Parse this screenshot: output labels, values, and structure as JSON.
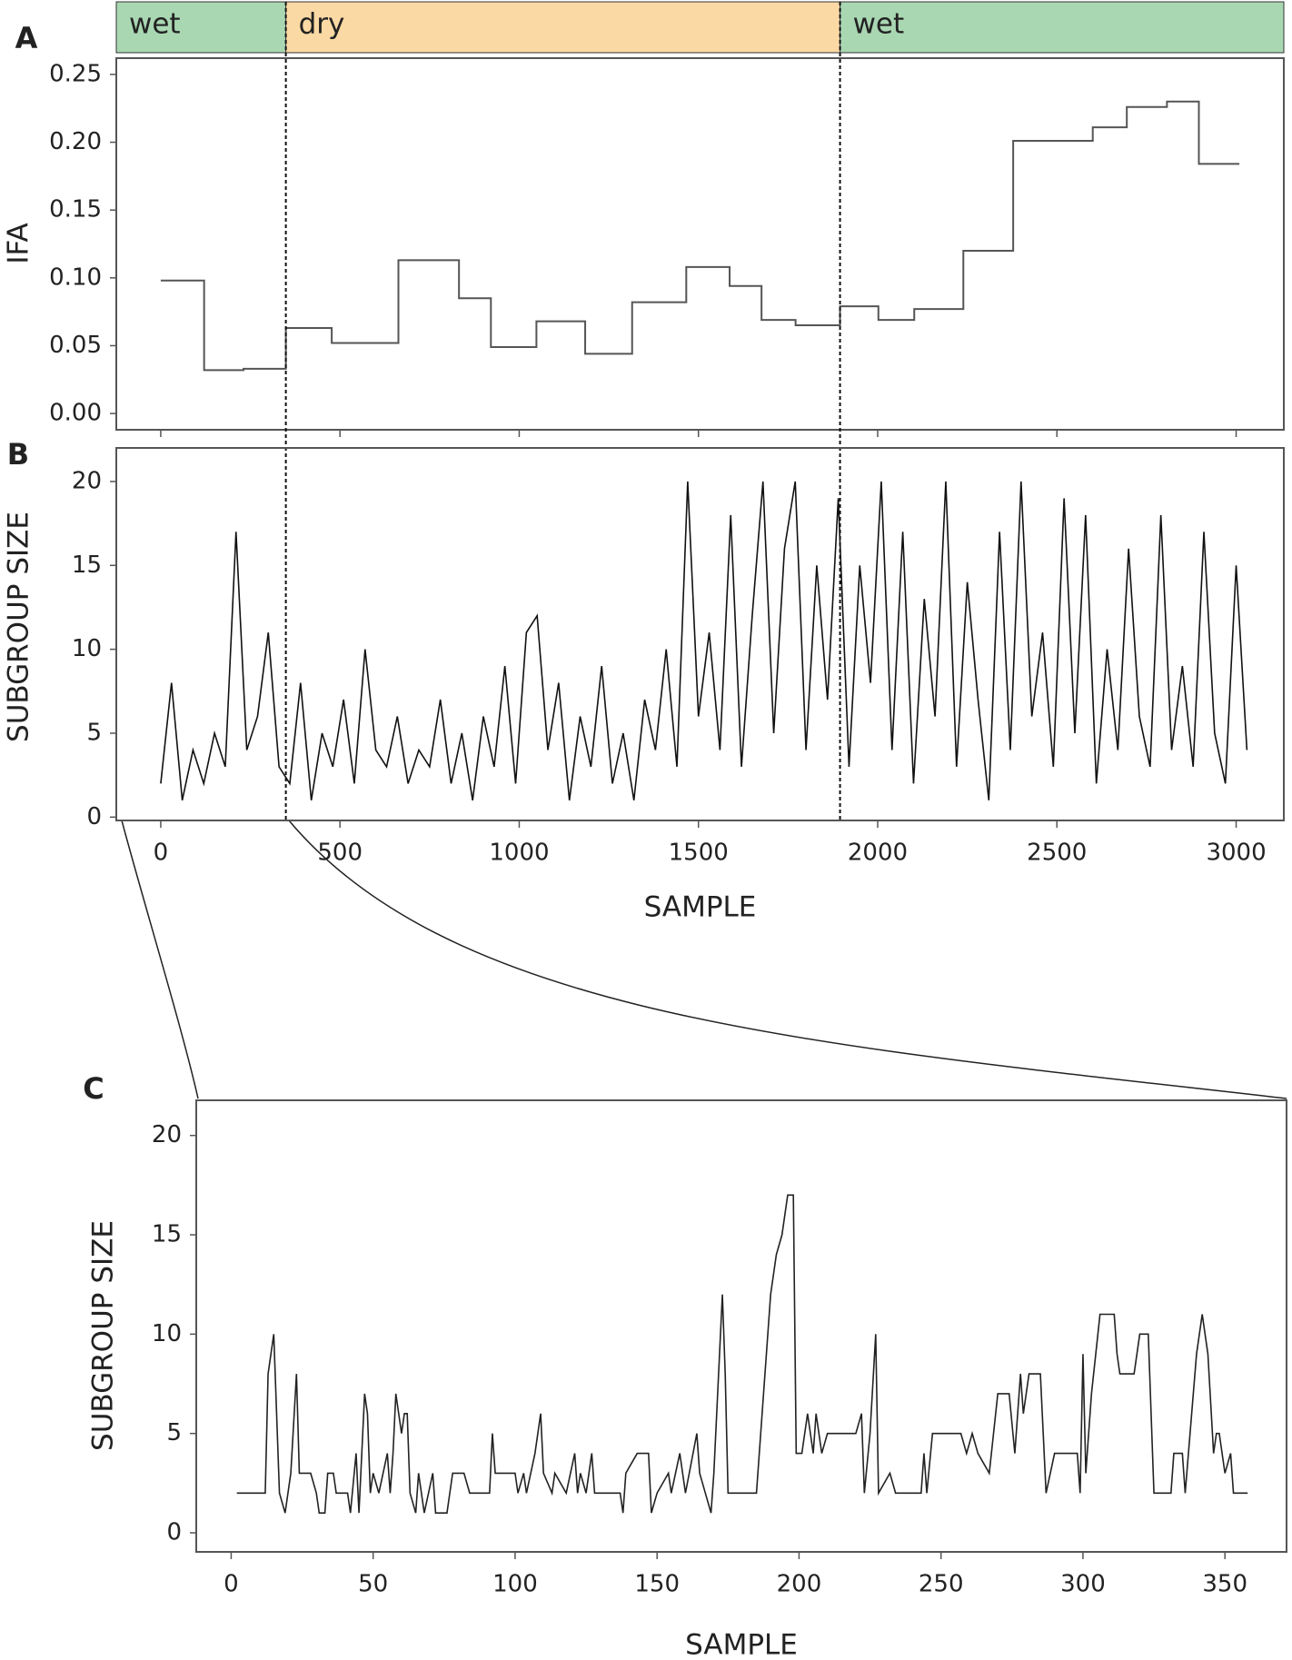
{
  "chart_data": [
    {
      "type": "step",
      "panel": "A",
      "y_label": "IFA",
      "bands": [
        {
          "label": "wet",
          "from": -124,
          "to": 349,
          "color": "#a9d7b2"
        },
        {
          "label": "dry",
          "from": 349,
          "to": 1895,
          "color": "#fbd9a4"
        },
        {
          "label": "wet",
          "from": 1895,
          "to": 3133,
          "color": "#a9d7b2"
        }
      ],
      "dividers": [
        349,
        1895
      ],
      "x": [
        0,
        121,
        231,
        349,
        477,
        663,
        832,
        921,
        1048,
        1184,
        1315,
        1466,
        1587,
        1676,
        1771,
        1895,
        2002,
        2102,
        2239,
        2378,
        2600,
        2695,
        2807,
        2896,
        3009
      ],
      "values": [
        0.098,
        0.032,
        0.033,
        0.063,
        0.052,
        0.113,
        0.085,
        0.049,
        0.068,
        0.044,
        0.082,
        0.108,
        0.094,
        0.069,
        0.065,
        0.079,
        0.069,
        0.077,
        0.12,
        0.201,
        0.211,
        0.226,
        0.23,
        0.184,
        0.184
      ],
      "color": "#555555",
      "xlim": [
        -124,
        3133
      ],
      "ylim": [
        -0.012,
        0.262
      ],
      "yticks": [
        {
          "value": 0.0,
          "label": "0.00"
        },
        0.05,
        {
          "value": 0.1,
          "label": "0.10"
        },
        0.15,
        {
          "value": 0.2,
          "label": "0.20"
        },
        0.25
      ]
    },
    {
      "type": "line",
      "panel": "B",
      "y_label": "SUBGROUP SIZE",
      "x_label": "SAMPLE",
      "x": [
        0,
        30,
        60,
        90,
        120,
        150,
        180,
        210,
        240,
        270,
        300,
        330,
        360,
        390,
        420,
        450,
        480,
        510,
        540,
        570,
        600,
        630,
        660,
        690,
        720,
        750,
        780,
        810,
        840,
        870,
        900,
        930,
        960,
        990,
        1020,
        1050,
        1080,
        1110,
        1140,
        1170,
        1200,
        1230,
        1260,
        1290,
        1320,
        1350,
        1380,
        1410,
        1440,
        1470,
        1500,
        1530,
        1560,
        1590,
        1620,
        1650,
        1680,
        1710,
        1740,
        1770,
        1800,
        1830,
        1860,
        1890,
        1920,
        1950,
        1980,
        2010,
        2040,
        2070,
        2100,
        2130,
        2160,
        2190,
        2220,
        2250,
        2280,
        2310,
        2340,
        2370,
        2400,
        2430,
        2460,
        2490,
        2520,
        2550,
        2580,
        2610,
        2640,
        2670,
        2700,
        2730,
        2760,
        2790,
        2820,
        2850,
        2880,
        2910,
        2940,
        2970,
        3000,
        3030
      ],
      "values": [
        2,
        8,
        1,
        4,
        2,
        5,
        3,
        17,
        4,
        6,
        11,
        3,
        2,
        8,
        1,
        5,
        3,
        7,
        2,
        10,
        4,
        3,
        6,
        2,
        4,
        3,
        7,
        2,
        5,
        1,
        6,
        3,
        9,
        2,
        11,
        12,
        4,
        8,
        1,
        6,
        3,
        9,
        2,
        5,
        1,
        7,
        4,
        10,
        3,
        20,
        6,
        11,
        4,
        18,
        3,
        12,
        20,
        5,
        16,
        20,
        4,
        15,
        7,
        19,
        3,
        15,
        8,
        20,
        4,
        17,
        2,
        13,
        6,
        20,
        3,
        14,
        7,
        1,
        17,
        4,
        20,
        6,
        11,
        3,
        19,
        5,
        18,
        2,
        10,
        4,
        16,
        6,
        3,
        18,
        4,
        9,
        3,
        17,
        5,
        2,
        15,
        4
      ],
      "color": "#111111",
      "xlim": [
        -124,
        3133
      ],
      "ylim": [
        -0.2,
        22
      ],
      "xticks": [
        0,
        500,
        1000,
        1500,
        2000,
        2500,
        3000
      ],
      "yticks": [
        0,
        5,
        10,
        15,
        20
      ]
    },
    {
      "type": "line",
      "panel": "C",
      "y_label": "SUBGROUP SIZE",
      "x_label": "SAMPLE",
      "x": [
        2,
        12,
        13,
        15,
        17,
        19,
        21,
        23,
        24,
        28,
        30,
        31,
        33,
        34,
        36,
        37,
        41,
        42,
        44,
        45,
        47,
        48,
        49,
        50,
        52,
        55,
        56,
        57,
        58,
        60,
        61,
        62,
        63,
        65,
        66,
        68,
        71,
        72,
        76,
        78,
        82,
        84,
        91,
        92,
        93,
        100,
        101,
        103,
        104,
        107,
        109,
        110,
        113,
        114,
        118,
        121,
        122,
        123,
        125,
        127,
        128,
        137,
        138,
        139,
        143,
        147,
        148,
        150,
        154,
        155,
        158,
        159,
        160,
        164,
        165,
        169,
        170,
        173,
        174,
        175,
        185,
        190,
        192,
        194,
        196,
        198,
        199,
        201,
        203,
        205,
        206,
        208,
        210,
        220,
        222,
        223,
        225,
        227,
        228,
        232,
        234,
        243,
        244,
        245,
        247,
        257,
        259,
        261,
        263,
        267,
        270,
        274,
        276,
        278,
        279,
        281,
        285,
        287,
        290,
        298,
        299,
        300,
        301,
        303,
        306,
        311,
        312,
        313,
        318,
        320,
        323,
        325,
        331,
        332,
        335,
        336,
        340,
        342,
        344,
        346,
        347,
        348,
        350,
        352,
        353,
        358
      ],
      "values": [
        2,
        2,
        8,
        10,
        2,
        1,
        3,
        8,
        3,
        3,
        2,
        1,
        1,
        3,
        3,
        2,
        2,
        1,
        4,
        1,
        7,
        6,
        2,
        3,
        2,
        4,
        2,
        4,
        7,
        5,
        6,
        6,
        2,
        1,
        3,
        1,
        3,
        1,
        1,
        3,
        3,
        2,
        2,
        5,
        3,
        3,
        2,
        3,
        2,
        4,
        6,
        3,
        2,
        3,
        2,
        4,
        2,
        3,
        2,
        4,
        2,
        2,
        1,
        3,
        4,
        4,
        1,
        2,
        3,
        2,
        4,
        3,
        2,
        5,
        3,
        1,
        3,
        12,
        8,
        2,
        2,
        12,
        14,
        15,
        17,
        17,
        4,
        4,
        6,
        4,
        6,
        4,
        5,
        5,
        6,
        2,
        5,
        10,
        2,
        3,
        2,
        2,
        4,
        2,
        5,
        5,
        4,
        5,
        4,
        3,
        7,
        7,
        4,
        8,
        6,
        8,
        8,
        2,
        4,
        4,
        2,
        9,
        3,
        7,
        11,
        11,
        9,
        8,
        8,
        10,
        10,
        2,
        2,
        4,
        4,
        2,
        9,
        11,
        9,
        4,
        5,
        5,
        3,
        4,
        2,
        2
      ],
      "color": "#222222",
      "xlim": [
        -12.3,
        371.7
      ],
      "ylim": [
        -0.96,
        21.77
      ],
      "xticks": [
        0,
        50,
        100,
        150,
        200,
        250,
        300,
        350
      ],
      "yticks": [
        0,
        5,
        10,
        15,
        20
      ]
    }
  ]
}
